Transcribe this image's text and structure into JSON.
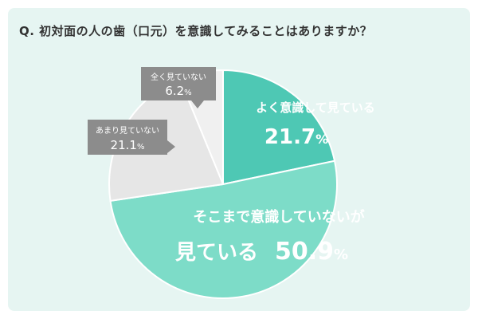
{
  "question": "Q. 初対面の人の歯（口元）を意識してみることはありますか？",
  "chart_data": {
    "type": "pie",
    "categories": [
      "よく意識して見ている",
      "そこまで意識していないが見ている",
      "あまり見ていない",
      "全く見ていない"
    ],
    "values": [
      21.7,
      50.9,
      21.1,
      6.2
    ],
    "unit": "%",
    "start": "12 o'clock, clockwise",
    "colors": [
      "#4ec8b4",
      "#7ddcc8",
      "#e6e6e6",
      "#f0f0f0"
    ],
    "labels": {
      "often": {
        "line1": "よく意識して見ている",
        "value": "21.7",
        "unit": "%"
      },
      "somewhat": {
        "line1": "そこまで意識していないが",
        "line2": "見ている",
        "value": "50.9",
        "unit": "%"
      },
      "rarely": {
        "line1": "あまり見ていない",
        "value": "21.1",
        "unit": "%"
      },
      "never": {
        "line1": "全く見ていない",
        "value": "6.2",
        "unit": "%"
      }
    },
    "callout_color": "#8c8c8c"
  }
}
